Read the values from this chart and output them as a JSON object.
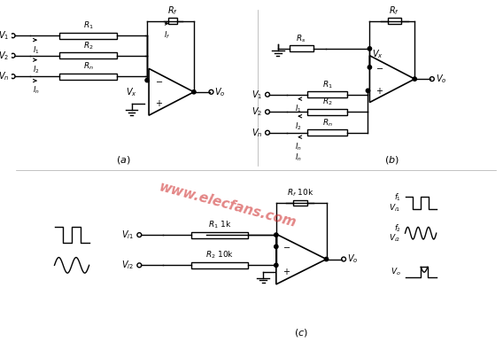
{
  "bg_color": "#ffffff",
  "watermark": "www.elecfans.com",
  "watermark_color": "#cc2222",
  "watermark_alpha": 0.55,
  "lw": 1.0,
  "lc": "#000000"
}
